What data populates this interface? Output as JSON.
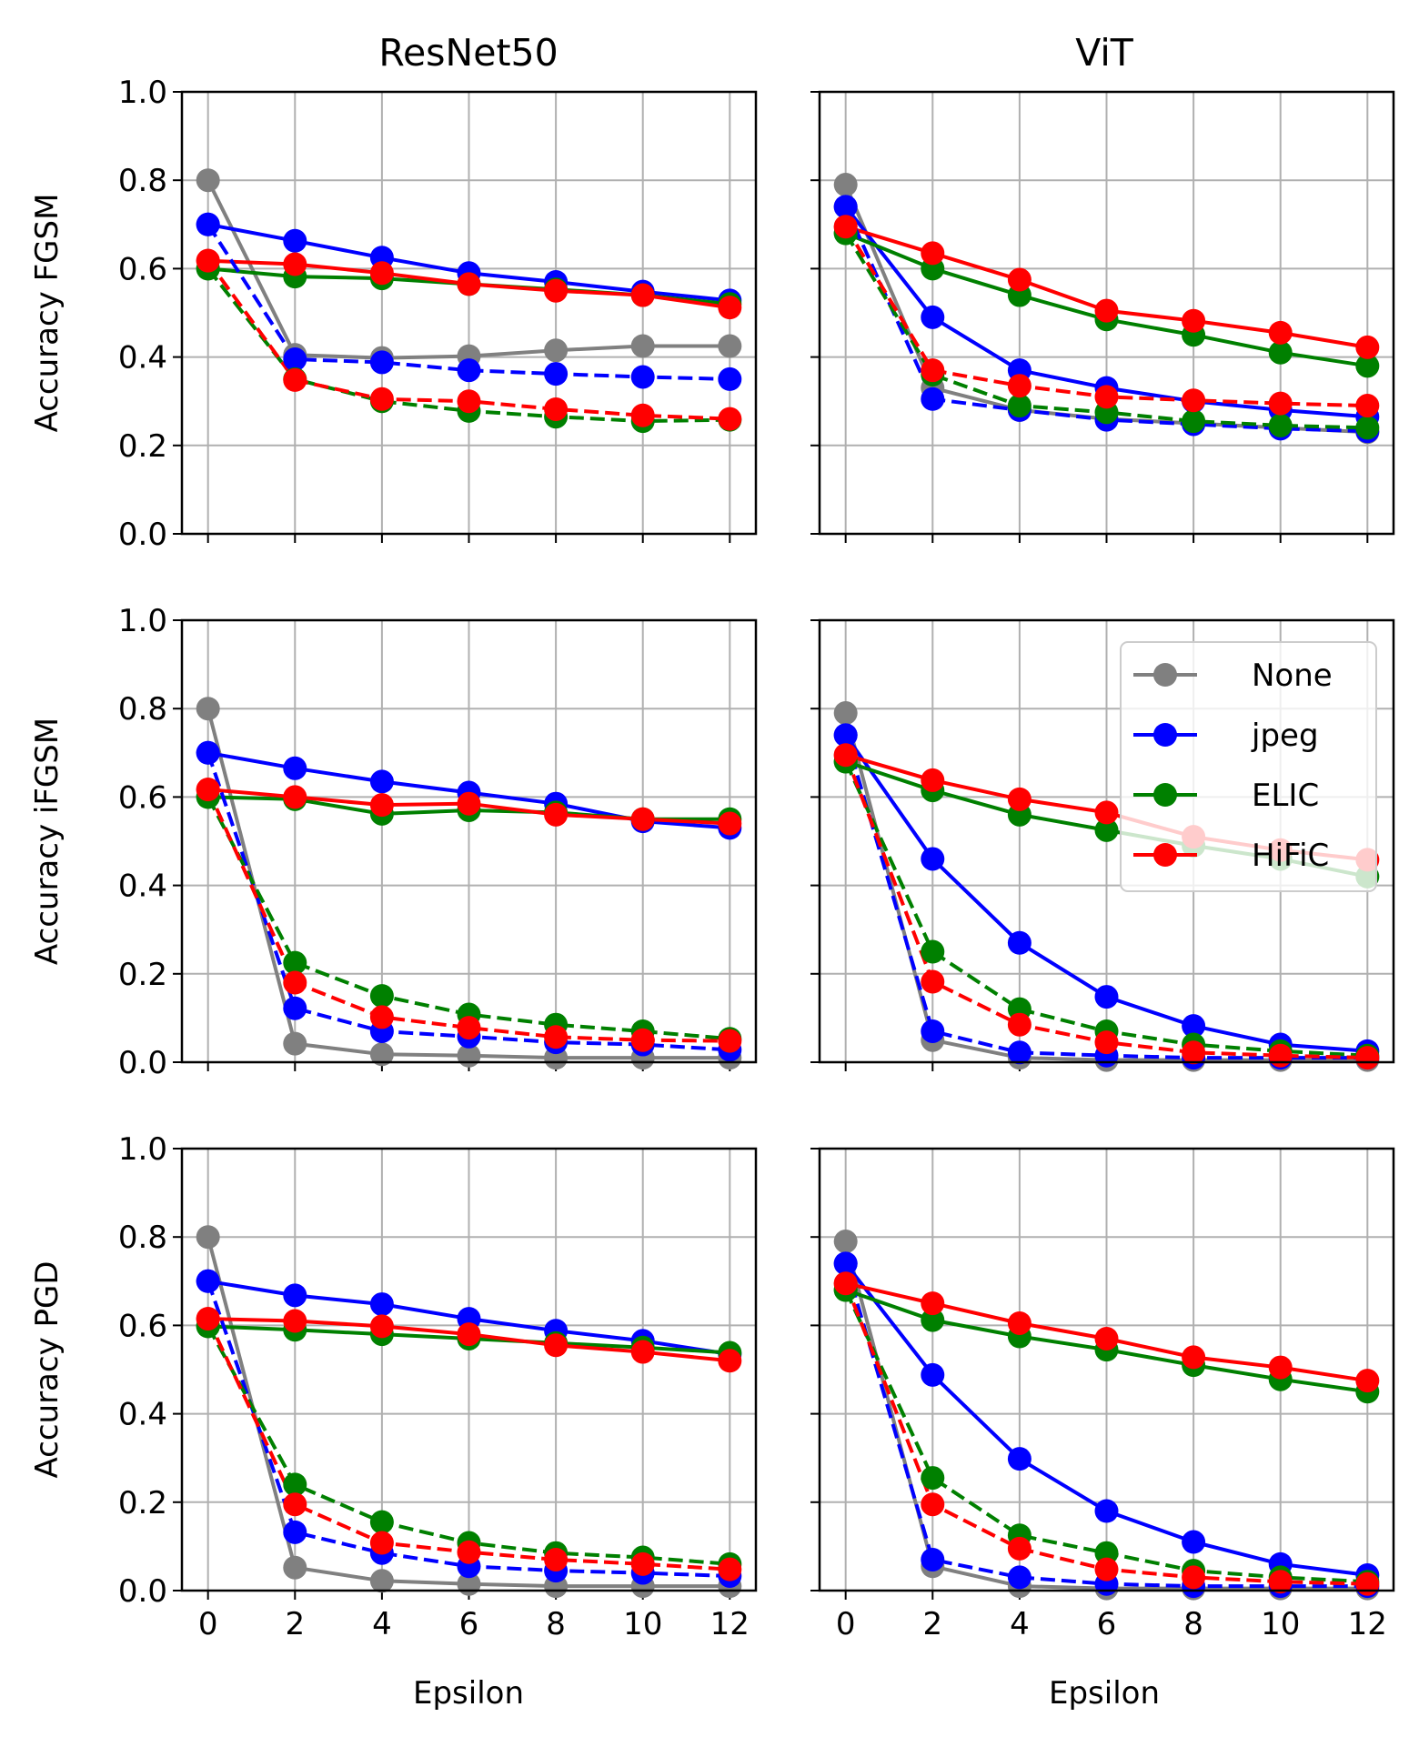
{
  "figure": {
    "column_titles": [
      "ResNet50",
      "ViT"
    ],
    "row_ylabels": [
      "Accuracy FGSM",
      "Accuracy iFGSM",
      "Accuracy PGD"
    ],
    "xlabel": "Epsilon"
  },
  "legend": {
    "location": "upper-right of the ViT iFGSM panel",
    "entries": [
      {
        "label": "None",
        "color": "#808080"
      },
      {
        "label": "jpeg",
        "color": "#0000ff"
      },
      {
        "label": "ELIC",
        "color": "#008000"
      },
      {
        "label": "HiFiC",
        "color": "#ff0000"
      }
    ]
  },
  "chart_data": [
    {
      "type": "line",
      "title": "ResNet50",
      "ylabel": "Accuracy FGSM",
      "xlabel": "",
      "x": [
        0,
        2,
        4,
        6,
        8,
        10,
        12
      ],
      "xticks": [
        "0",
        "2",
        "4",
        "6",
        "8",
        "10",
        "12"
      ],
      "yticks": [
        "0.0",
        "0.2",
        "0.4",
        "0.6",
        "0.8",
        "1.0"
      ],
      "xlim": [
        -0.6,
        12.6
      ],
      "ylim": [
        0,
        1
      ],
      "grid": true,
      "series": [
        {
          "name": "None",
          "color": "#808080",
          "style": "solid",
          "values": [
            0.8,
            0.405,
            0.398,
            0.402,
            0.415,
            0.425,
            0.425
          ]
        },
        {
          "name": "jpeg",
          "color": "#0000ff",
          "style": "solid",
          "values": [
            0.7,
            0.663,
            0.625,
            0.59,
            0.57,
            0.548,
            0.528
          ]
        },
        {
          "name": "ELIC",
          "color": "#008000",
          "style": "solid",
          "values": [
            0.6,
            0.582,
            0.578,
            0.565,
            0.553,
            0.54,
            0.52
          ]
        },
        {
          "name": "HiFiC",
          "color": "#ff0000",
          "style": "solid",
          "values": [
            0.618,
            0.61,
            0.59,
            0.565,
            0.55,
            0.54,
            0.512
          ]
        },
        {
          "name": "jpeg (dashed)",
          "color": "#0000ff",
          "style": "dashed",
          "values": [
            0.7,
            0.395,
            0.388,
            0.37,
            0.362,
            0.355,
            0.35
          ]
        },
        {
          "name": "ELIC (dashed)",
          "color": "#008000",
          "style": "dashed",
          "values": [
            0.6,
            0.35,
            0.3,
            0.278,
            0.265,
            0.255,
            0.258
          ]
        },
        {
          "name": "HiFiC (dashed)",
          "color": "#ff0000",
          "style": "dashed",
          "values": [
            0.618,
            0.348,
            0.305,
            0.3,
            0.282,
            0.268,
            0.26
          ]
        }
      ]
    },
    {
      "type": "line",
      "title": "ViT",
      "ylabel": "",
      "xlabel": "",
      "x": [
        0,
        2,
        4,
        6,
        8,
        10,
        12
      ],
      "xticks": [
        "0",
        "2",
        "4",
        "6",
        "8",
        "10",
        "12"
      ],
      "yticks": [
        "0.0",
        "0.2",
        "0.4",
        "0.6",
        "0.8",
        "1.0"
      ],
      "xlim": [
        -0.6,
        12.6
      ],
      "ylim": [
        0,
        1
      ],
      "grid": true,
      "series": [
        {
          "name": "None",
          "color": "#808080",
          "style": "solid",
          "values": [
            0.79,
            0.33,
            0.28,
            0.26,
            0.25,
            0.24,
            0.23
          ]
        },
        {
          "name": "jpeg",
          "color": "#0000ff",
          "style": "solid",
          "values": [
            0.74,
            0.49,
            0.37,
            0.33,
            0.3,
            0.28,
            0.265
          ]
        },
        {
          "name": "ELIC",
          "color": "#008000",
          "style": "solid",
          "values": [
            0.68,
            0.6,
            0.54,
            0.485,
            0.45,
            0.41,
            0.38
          ]
        },
        {
          "name": "HiFiC",
          "color": "#ff0000",
          "style": "solid",
          "values": [
            0.695,
            0.635,
            0.575,
            0.505,
            0.482,
            0.455,
            0.422
          ]
        },
        {
          "name": "jpeg (dashed)",
          "color": "#0000ff",
          "style": "dashed",
          "values": [
            0.74,
            0.305,
            0.28,
            0.258,
            0.248,
            0.238,
            0.232
          ]
        },
        {
          "name": "ELIC (dashed)",
          "color": "#008000",
          "style": "dashed",
          "values": [
            0.68,
            0.36,
            0.29,
            0.275,
            0.255,
            0.245,
            0.24
          ]
        },
        {
          "name": "HiFiC (dashed)",
          "color": "#ff0000",
          "style": "dashed",
          "values": [
            0.695,
            0.37,
            0.335,
            0.31,
            0.302,
            0.295,
            0.29
          ]
        }
      ]
    },
    {
      "type": "line",
      "title": "",
      "ylabel": "Accuracy iFGSM",
      "xlabel": "",
      "x": [
        0,
        2,
        4,
        6,
        8,
        10,
        12
      ],
      "xticks": [
        "0",
        "2",
        "4",
        "6",
        "8",
        "10",
        "12"
      ],
      "yticks": [
        "0.0",
        "0.2",
        "0.4",
        "0.6",
        "0.8",
        "1.0"
      ],
      "xlim": [
        -0.6,
        12.6
      ],
      "ylim": [
        0,
        1
      ],
      "grid": true,
      "series": [
        {
          "name": "None",
          "color": "#808080",
          "style": "solid",
          "values": [
            0.8,
            0.042,
            0.018,
            0.015,
            0.01,
            0.01,
            0.01
          ]
        },
        {
          "name": "jpeg",
          "color": "#0000ff",
          "style": "solid",
          "values": [
            0.7,
            0.665,
            0.635,
            0.61,
            0.585,
            0.545,
            0.53
          ]
        },
        {
          "name": "ELIC",
          "color": "#008000",
          "style": "solid",
          "values": [
            0.6,
            0.595,
            0.562,
            0.57,
            0.565,
            0.55,
            0.55
          ]
        },
        {
          "name": "HiFiC",
          "color": "#ff0000",
          "style": "solid",
          "values": [
            0.617,
            0.6,
            0.582,
            0.585,
            0.56,
            0.55,
            0.54
          ]
        },
        {
          "name": "jpeg (dashed)",
          "color": "#0000ff",
          "style": "dashed",
          "values": [
            0.7,
            0.122,
            0.07,
            0.058,
            0.045,
            0.04,
            0.028
          ]
        },
        {
          "name": "ELIC (dashed)",
          "color": "#008000",
          "style": "dashed",
          "values": [
            0.6,
            0.225,
            0.15,
            0.108,
            0.085,
            0.07,
            0.053
          ]
        },
        {
          "name": "HiFiC (dashed)",
          "color": "#ff0000",
          "style": "dashed",
          "values": [
            0.617,
            0.18,
            0.102,
            0.078,
            0.057,
            0.05,
            0.048
          ]
        }
      ]
    },
    {
      "type": "line",
      "title": "",
      "ylabel": "",
      "xlabel": "",
      "x": [
        0,
        2,
        4,
        6,
        8,
        10,
        12
      ],
      "xticks": [
        "0",
        "2",
        "4",
        "6",
        "8",
        "10",
        "12"
      ],
      "yticks": [
        "0.0",
        "0.2",
        "0.4",
        "0.6",
        "0.8",
        "1.0"
      ],
      "xlim": [
        -0.6,
        12.6
      ],
      "ylim": [
        0,
        1
      ],
      "grid": true,
      "series": [
        {
          "name": "None",
          "color": "#808080",
          "style": "solid",
          "values": [
            0.79,
            0.05,
            0.01,
            0.005,
            0.005,
            0.005,
            0.005
          ]
        },
        {
          "name": "jpeg",
          "color": "#0000ff",
          "style": "solid",
          "values": [
            0.74,
            0.46,
            0.27,
            0.148,
            0.082,
            0.04,
            0.025
          ]
        },
        {
          "name": "ELIC",
          "color": "#008000",
          "style": "solid",
          "values": [
            0.68,
            0.615,
            0.56,
            0.525,
            0.49,
            0.46,
            0.42
          ]
        },
        {
          "name": "HiFiC",
          "color": "#ff0000",
          "style": "solid",
          "values": [
            0.695,
            0.638,
            0.595,
            0.565,
            0.51,
            0.48,
            0.458
          ]
        },
        {
          "name": "jpeg (dashed)",
          "color": "#0000ff",
          "style": "dashed",
          "values": [
            0.74,
            0.07,
            0.022,
            0.015,
            0.01,
            0.01,
            0.01
          ]
        },
        {
          "name": "ELIC (dashed)",
          "color": "#008000",
          "style": "dashed",
          "values": [
            0.68,
            0.25,
            0.12,
            0.07,
            0.04,
            0.025,
            0.015
          ]
        },
        {
          "name": "HiFiC (dashed)",
          "color": "#ff0000",
          "style": "dashed",
          "values": [
            0.695,
            0.182,
            0.085,
            0.045,
            0.022,
            0.015,
            0.01
          ]
        }
      ]
    },
    {
      "type": "line",
      "title": "",
      "ylabel": "Accuracy PGD",
      "xlabel": "Epsilon",
      "x": [
        0,
        2,
        4,
        6,
        8,
        10,
        12
      ],
      "xticks": [
        "0",
        "2",
        "4",
        "6",
        "8",
        "10",
        "12"
      ],
      "yticks": [
        "0.0",
        "0.2",
        "0.4",
        "0.6",
        "0.8",
        "1.0"
      ],
      "xlim": [
        -0.6,
        12.6
      ],
      "ylim": [
        0,
        1
      ],
      "grid": true,
      "series": [
        {
          "name": "None",
          "color": "#808080",
          "style": "solid",
          "values": [
            0.8,
            0.052,
            0.022,
            0.015,
            0.01,
            0.01,
            0.01
          ]
        },
        {
          "name": "jpeg",
          "color": "#0000ff",
          "style": "solid",
          "values": [
            0.7,
            0.668,
            0.648,
            0.615,
            0.588,
            0.565,
            0.535
          ]
        },
        {
          "name": "ELIC",
          "color": "#008000",
          "style": "solid",
          "values": [
            0.598,
            0.59,
            0.58,
            0.57,
            0.56,
            0.55,
            0.538
          ]
        },
        {
          "name": "HiFiC",
          "color": "#ff0000",
          "style": "solid",
          "values": [
            0.615,
            0.61,
            0.598,
            0.58,
            0.555,
            0.54,
            0.52
          ]
        },
        {
          "name": "jpeg (dashed)",
          "color": "#0000ff",
          "style": "dashed",
          "values": [
            0.7,
            0.132,
            0.085,
            0.055,
            0.045,
            0.04,
            0.033
          ]
        },
        {
          "name": "ELIC (dashed)",
          "color": "#008000",
          "style": "dashed",
          "values": [
            0.598,
            0.24,
            0.155,
            0.108,
            0.085,
            0.075,
            0.06
          ]
        },
        {
          "name": "HiFiC (dashed)",
          "color": "#ff0000",
          "style": "dashed",
          "values": [
            0.615,
            0.195,
            0.108,
            0.087,
            0.07,
            0.06,
            0.048
          ]
        }
      ]
    },
    {
      "type": "line",
      "title": "",
      "ylabel": "",
      "xlabel": "Epsilon",
      "x": [
        0,
        2,
        4,
        6,
        8,
        10,
        12
      ],
      "xticks": [
        "0",
        "2",
        "4",
        "6",
        "8",
        "10",
        "12"
      ],
      "yticks": [
        "0.0",
        "0.2",
        "0.4",
        "0.6",
        "0.8",
        "1.0"
      ],
      "xlim": [
        -0.6,
        12.6
      ],
      "ylim": [
        0,
        1
      ],
      "grid": true,
      "series": [
        {
          "name": "None",
          "color": "#808080",
          "style": "solid",
          "values": [
            0.79,
            0.055,
            0.01,
            0.005,
            0.005,
            0.005,
            0.005
          ]
        },
        {
          "name": "jpeg",
          "color": "#0000ff",
          "style": "solid",
          "values": [
            0.74,
            0.488,
            0.298,
            0.18,
            0.11,
            0.06,
            0.035
          ]
        },
        {
          "name": "ELIC",
          "color": "#008000",
          "style": "solid",
          "values": [
            0.68,
            0.612,
            0.575,
            0.545,
            0.51,
            0.478,
            0.45
          ]
        },
        {
          "name": "HiFiC",
          "color": "#ff0000",
          "style": "solid",
          "values": [
            0.695,
            0.65,
            0.605,
            0.57,
            0.528,
            0.505,
            0.475
          ]
        },
        {
          "name": "jpeg (dashed)",
          "color": "#0000ff",
          "style": "dashed",
          "values": [
            0.74,
            0.07,
            0.03,
            0.015,
            0.01,
            0.01,
            0.01
          ]
        },
        {
          "name": "ELIC (dashed)",
          "color": "#008000",
          "style": "dashed",
          "values": [
            0.68,
            0.255,
            0.125,
            0.085,
            0.045,
            0.03,
            0.02
          ]
        },
        {
          "name": "HiFiC (dashed)",
          "color": "#ff0000",
          "style": "dashed",
          "values": [
            0.695,
            0.195,
            0.095,
            0.048,
            0.03,
            0.02,
            0.015
          ]
        }
      ]
    }
  ]
}
